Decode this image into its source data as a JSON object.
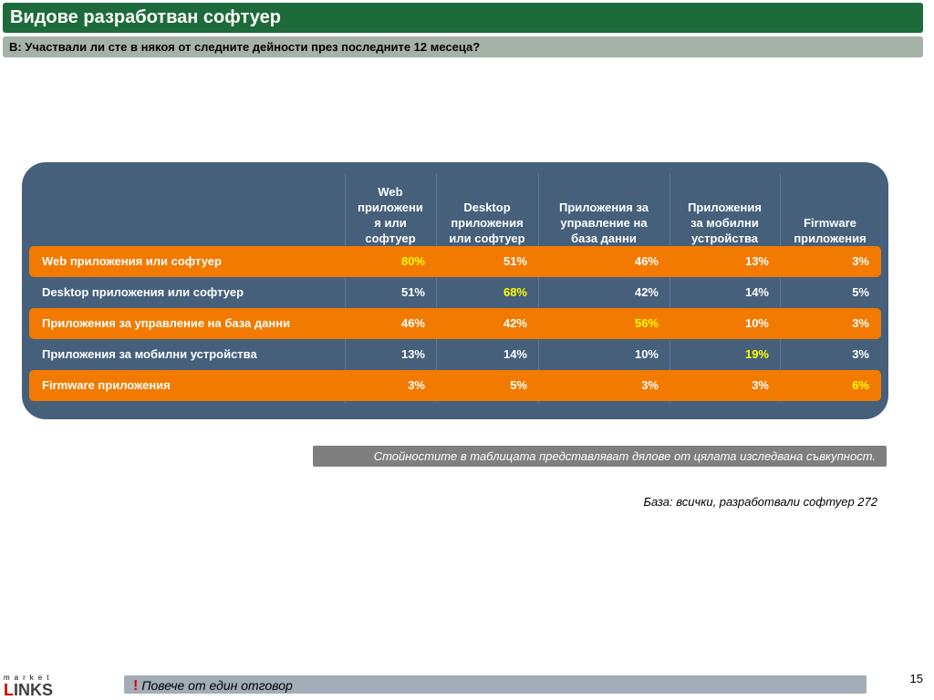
{
  "title": "Видове разработван софтуер",
  "question": "В: Участвали ли сте в някоя от следните дейности през последните 12 месеца?",
  "table": {
    "columns": [
      "Web\nприложени\nя или\nсофтуер",
      "Desktop\nприложения\nили софтуер",
      "Приложения за\nуправление на\nбаза данни",
      "Приложения\nза мобилни\nустройства",
      "Firmware\nприложения"
    ],
    "rows": [
      {
        "label": "Web приложения или софтуер",
        "values": [
          "80%",
          "51%",
          "46%",
          "13%",
          "3%"
        ]
      },
      {
        "label": "Desktop приложения или софтуер",
        "values": [
          "51%",
          "68%",
          "42%",
          "14%",
          "5%"
        ]
      },
      {
        "label": "Приложения за управление на база данни",
        "values": [
          "46%",
          "42%",
          "56%",
          "10%",
          "3%"
        ]
      },
      {
        "label": "Приложения за мобилни устройства",
        "values": [
          "13%",
          "14%",
          "10%",
          "19%",
          "3%"
        ]
      },
      {
        "label": "Firmware приложения",
        "values": [
          "3%",
          "5%",
          "3%",
          "3%",
          "6%"
        ]
      }
    ],
    "colors": {
      "panel": "#46607c",
      "band": "#f27a00",
      "highlight": "#ffff00"
    }
  },
  "note": "Стойностите в таблицата представляват дялове от цялата изследвана съвкупност.",
  "base": "База: всички, разработвали софтуер 272",
  "page_number": "15",
  "footer": {
    "mark": "!",
    "text": "Повече от един отговор"
  },
  "logo": {
    "top": "market",
    "main_first": "L",
    "main_rest": "INKS"
  }
}
